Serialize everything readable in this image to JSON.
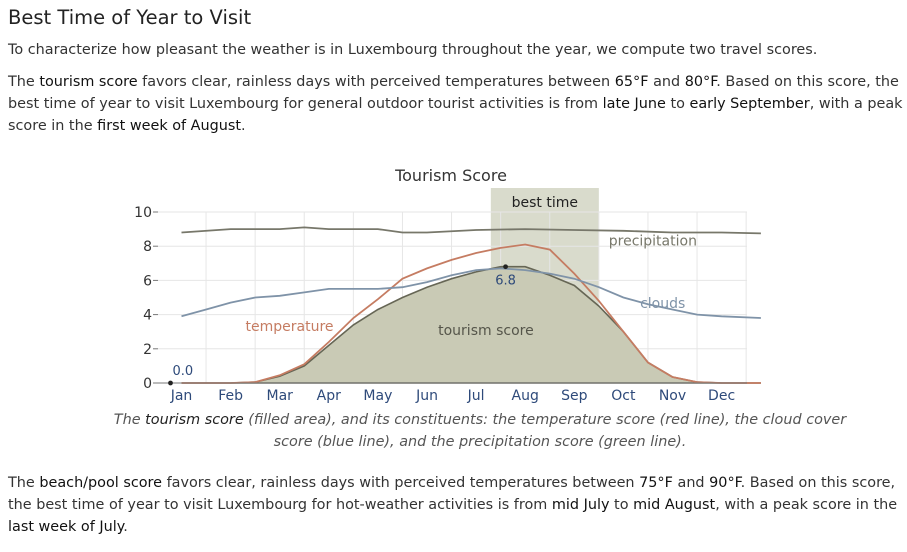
{
  "section": {
    "title": "Best Time of Year to Visit",
    "intro": "To characterize how pleasant the weather is in Luxembourg throughout the year, we compute two travel scores.",
    "tourism_paragraph": {
      "t1": "The ",
      "score_name": "tourism score",
      "t2": " favors clear, rainless days with perceived temperatures between ",
      "temp_low": "65°F",
      "t3": " and ",
      "temp_high": "80°F",
      "t4": ". Based on this score, the best time of year to visit Luxembourg for general outdoor tourist activities is from ",
      "start": "late June",
      "t5": " to ",
      "end": "early September",
      "t6": ", with a peak score in the ",
      "peak": "first week of August",
      "t7": "."
    },
    "caption": {
      "c1": "The ",
      "score_name": "tourism score",
      "c2": " (filled area), and its constituents: the temperature score (red line), the cloud cover score (blue line), and the precipitation score (green line)."
    },
    "beach_paragraph": {
      "t1": "The ",
      "score_name": "beach/pool score",
      "t2": " favors clear, rainless days with perceived temperatures between ",
      "temp_low": "75°F",
      "t3": " and ",
      "temp_high": "90°F",
      "t4": ". Based on this score, the best time of year to visit Luxembourg for hot-weather activities is from ",
      "start": "mid July",
      "t5": " to ",
      "end": "mid August",
      "t6": ", with a peak score in the ",
      "peak": "last week of July",
      "t7": "."
    }
  },
  "chart_data": {
    "type": "area",
    "title": "Tourism Score",
    "months": [
      "Jan",
      "Feb",
      "Mar",
      "Apr",
      "May",
      "Jun",
      "Jul",
      "Aug",
      "Sep",
      "Oct",
      "Nov",
      "Dec"
    ],
    "ylim": [
      0,
      10
    ],
    "yticks": [
      "0",
      "2",
      "4",
      "6",
      "8",
      "10"
    ],
    "best_time": {
      "label": "best time",
      "from_month": 6.3,
      "to_month": 8.5
    },
    "annotations": {
      "min_label": "0.0",
      "min_month": 0.0,
      "max_label": "6.8",
      "max_month": 6.6
    },
    "series": [
      {
        "name": "tourism score",
        "kind": "area",
        "color": "#666655",
        "label_month": 6.2,
        "label_value": 2.8,
        "points": [
          [
            0,
            0
          ],
          [
            1,
            0
          ],
          [
            1.5,
            0.05
          ],
          [
            2,
            0.4
          ],
          [
            2.5,
            1.0
          ],
          [
            3,
            2.2
          ],
          [
            3.5,
            3.4
          ],
          [
            4,
            4.3
          ],
          [
            4.5,
            5.0
          ],
          [
            5,
            5.6
          ],
          [
            5.5,
            6.1
          ],
          [
            6,
            6.5
          ],
          [
            6.5,
            6.8
          ],
          [
            7,
            6.8
          ],
          [
            7.5,
            6.3
          ],
          [
            8,
            5.7
          ],
          [
            8.5,
            4.5
          ],
          [
            9,
            3.0
          ],
          [
            9.5,
            1.2
          ],
          [
            10,
            0.35
          ],
          [
            10.5,
            0.05
          ],
          [
            11,
            0
          ],
          [
            11.8,
            0
          ]
        ]
      },
      {
        "name": "temperature",
        "kind": "line",
        "color": "#c57c62",
        "label_month": 2.2,
        "label_value": 3.05,
        "points": [
          [
            0,
            0
          ],
          [
            1,
            0
          ],
          [
            1.5,
            0.05
          ],
          [
            2,
            0.45
          ],
          [
            2.5,
            1.1
          ],
          [
            3,
            2.4
          ],
          [
            3.5,
            3.8
          ],
          [
            4,
            4.9
          ],
          [
            4.5,
            6.1
          ],
          [
            5,
            6.7
          ],
          [
            5.5,
            7.2
          ],
          [
            6,
            7.6
          ],
          [
            6.5,
            7.9
          ],
          [
            7,
            8.1
          ],
          [
            7.5,
            7.8
          ],
          [
            8,
            6.4
          ],
          [
            8.5,
            4.8
          ],
          [
            9,
            3.0
          ],
          [
            9.5,
            1.2
          ],
          [
            10,
            0.35
          ],
          [
            10.5,
            0.05
          ],
          [
            11,
            0
          ],
          [
            11.8,
            0
          ]
        ]
      },
      {
        "name": "clouds",
        "kind": "line",
        "color": "#7f93a8",
        "label_month": 9.8,
        "label_value": 4.4,
        "points": [
          [
            0,
            3.9
          ],
          [
            0.5,
            4.3
          ],
          [
            1,
            4.7
          ],
          [
            1.5,
            5.0
          ],
          [
            2,
            5.1
          ],
          [
            2.5,
            5.3
          ],
          [
            3,
            5.5
          ],
          [
            3.5,
            5.5
          ],
          [
            4,
            5.5
          ],
          [
            4.5,
            5.6
          ],
          [
            5,
            5.9
          ],
          [
            5.5,
            6.3
          ],
          [
            6,
            6.6
          ],
          [
            6.5,
            6.7
          ],
          [
            7,
            6.6
          ],
          [
            7.5,
            6.4
          ],
          [
            8,
            6.1
          ],
          [
            8.5,
            5.6
          ],
          [
            9,
            5.0
          ],
          [
            9.5,
            4.6
          ],
          [
            10,
            4.3
          ],
          [
            10.5,
            4.0
          ],
          [
            11,
            3.9
          ],
          [
            11.8,
            3.8
          ]
        ]
      },
      {
        "name": "precipitation",
        "kind": "line",
        "color": "#77776a",
        "label_month": 9.6,
        "label_value": 8.05,
        "points": [
          [
            0,
            8.8
          ],
          [
            1,
            9.0
          ],
          [
            2,
            9.0
          ],
          [
            2.5,
            9.1
          ],
          [
            3,
            9.0
          ],
          [
            4,
            9.0
          ],
          [
            4.5,
            8.8
          ],
          [
            5,
            8.8
          ],
          [
            6,
            8.95
          ],
          [
            7,
            9.0
          ],
          [
            8,
            8.95
          ],
          [
            9,
            8.9
          ],
          [
            10,
            8.8
          ],
          [
            11,
            8.8
          ],
          [
            11.8,
            8.75
          ]
        ]
      }
    ]
  }
}
